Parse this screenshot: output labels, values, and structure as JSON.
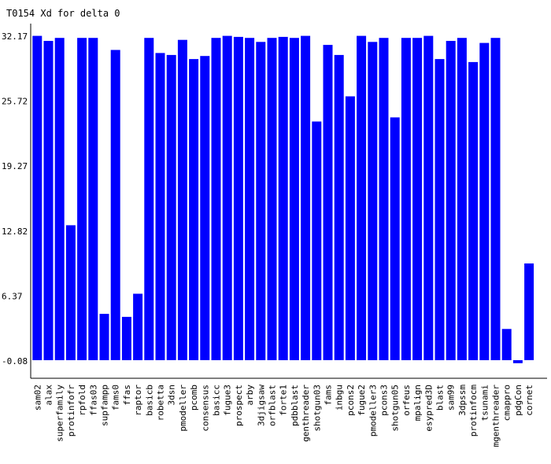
{
  "chart_data": {
    "type": "bar",
    "title": "T0154 Xd for delta 0",
    "xlabel": "",
    "ylabel": "",
    "yticks": [
      "32.17",
      "25.72",
      "19.27",
      "12.82",
      "6.37",
      "-0.08"
    ],
    "ylim": [
      -0.08,
      32.17
    ],
    "categories": [
      "sam02",
      "alax",
      "superfamily",
      "protinfofr",
      "rpfold",
      "ffas03",
      "supfampp",
      "fams0",
      "ffas",
      "raptor",
      "basicb",
      "robetta",
      "3dsn",
      "pmodeller",
      "pcomb",
      "consensus",
      "basicc",
      "fugue3",
      "prospect",
      "arby",
      "3djigsaw",
      "orfblast",
      "forte1",
      "pdbblast",
      "genthreader",
      "shotgun03",
      "fams",
      "inbgu",
      "pcons2",
      "fugue2",
      "pmodeller3",
      "pcons3",
      "shotgun05",
      "orfeus",
      "mpalign",
      "esypred3D",
      "blast",
      "sam99",
      "3dpssm",
      "protinfocm",
      "tsunami",
      "mgenthreader",
      "cmappro",
      "pdgCon",
      "cornet"
    ],
    "series": [
      {
        "color": "#0000ff",
        "values": [
          32.2,
          31.7,
          32.0,
          13.4,
          32.0,
          32.0,
          4.6,
          30.8,
          4.3,
          6.6,
          32.0,
          30.5,
          30.3,
          31.8,
          29.9,
          30.2,
          32.0,
          32.2,
          32.1,
          32.0,
          31.6,
          32.0,
          32.1,
          32.0,
          32.2,
          23.7,
          31.3,
          30.3,
          26.2,
          32.2,
          31.6,
          32.0,
          24.1,
          32.0,
          32.0,
          32.2,
          29.9,
          31.7,
          32.0,
          29.6,
          31.5,
          32.0,
          3.1,
          -0.3,
          9.6
        ]
      }
    ]
  }
}
